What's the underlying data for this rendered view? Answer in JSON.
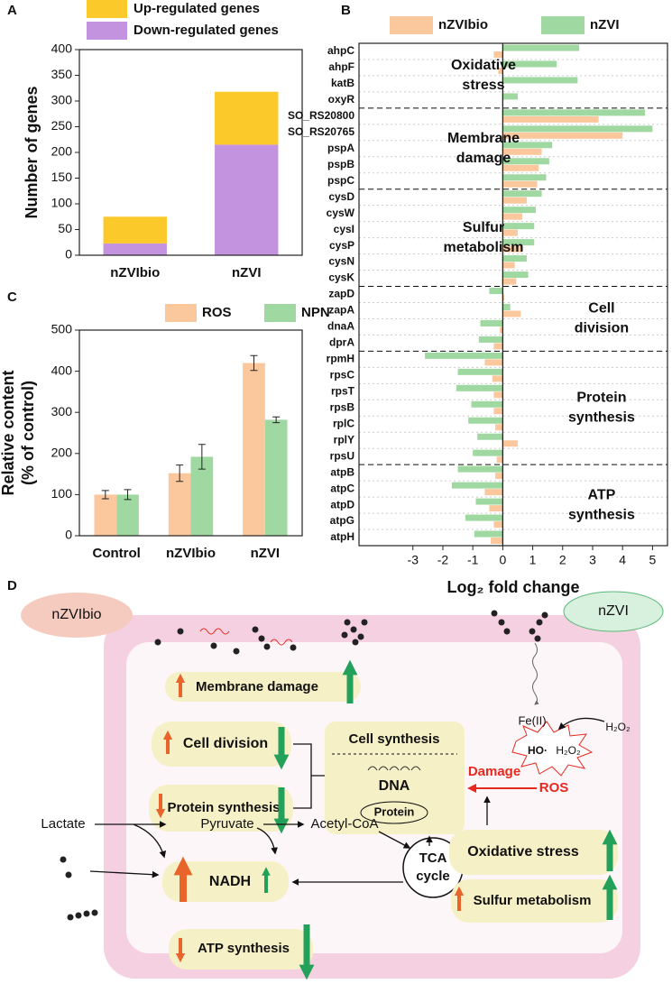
{
  "panel_labels": [
    "A",
    "B",
    "C",
    "D"
  ],
  "chart_data": [
    {
      "type": "stacked_bar",
      "categories": [
        "nZVIbio",
        "nZVI"
      ],
      "series": [
        {
          "name": "Up-regulated genes",
          "color": "#fcc92b",
          "values": [
            52,
            103
          ]
        },
        {
          "name": "Down-regulated genes",
          "color": "#c393e0",
          "values": [
            23,
            215
          ]
        }
      ],
      "ylabel": "Number of genes",
      "ylim": [
        0,
        400
      ],
      "yticks": [
        0,
        50,
        100,
        150,
        200,
        250,
        300,
        350,
        400
      ]
    },
    {
      "type": "hbar",
      "categories": [
        "ahpC",
        "ahpF",
        "katB",
        "oxyR",
        "SO_RS20800",
        "SO_RS20765",
        "pspA",
        "pspB",
        "pspC",
        "cysD",
        "cysW",
        "cysI",
        "cysP",
        "cysN",
        "cysK",
        "zapD",
        "zapA",
        "dnaA",
        "dprA",
        "rpmH",
        "rpsC",
        "rpsT",
        "rpsB",
        "rplC",
        "rplY",
        "rpsU",
        "atpB",
        "atpC",
        "atpD",
        "atpG",
        "atpH"
      ],
      "series": [
        {
          "name": "nZVIbio",
          "color": "#fbc79c",
          "values": [
            -0.3,
            -0.15,
            0,
            0,
            3.2,
            4.0,
            1.3,
            1.2,
            1.15,
            0.8,
            0.65,
            0.5,
            0.65,
            0.4,
            0.45,
            0.05,
            0.6,
            -0.1,
            -0.3,
            -0.6,
            -0.35,
            -0.3,
            -0.3,
            -0.25,
            0.5,
            -0.2,
            -0.25,
            -0.6,
            -0.45,
            -0.3,
            -0.4
          ]
        },
        {
          "name": "nZVI",
          "color": "#9fd8a0",
          "values": [
            2.55,
            1.8,
            2.5,
            0.5,
            4.75,
            5.0,
            1.65,
            1.55,
            1.45,
            1.3,
            1.1,
            1.05,
            1.05,
            0.8,
            0.85,
            -0.45,
            0.25,
            -0.75,
            -0.8,
            -2.6,
            -1.5,
            -1.55,
            -1.05,
            -1.15,
            -0.85,
            -1.0,
            -1.5,
            -1.7,
            -0.9,
            -1.25,
            -0.95
          ]
        }
      ],
      "groups": [
        [
          "Oxidative",
          "stress"
        ],
        [
          "Membrane",
          "damage"
        ],
        [
          "Sulfur",
          "metabolism"
        ],
        [
          "Cell",
          "division"
        ],
        [
          "Protein",
          "synthesis"
        ],
        [
          "ATP",
          "synthesis"
        ]
      ],
      "xlabel": "Log₂ fold change",
      "xlim": [
        -4.8,
        5.5
      ],
      "xticks": [
        -3,
        -2,
        -1,
        0,
        1,
        2,
        3,
        4,
        5
      ]
    },
    {
      "type": "grouped_bar",
      "categories": [
        "Control",
        "nZVIbio",
        "nZVI"
      ],
      "series": [
        {
          "name": "ROS",
          "color": "#fbc79c",
          "values": [
            100,
            152,
            420
          ],
          "errors": [
            10,
            20,
            18
          ]
        },
        {
          "name": "NPN",
          "color": "#9fd8a0",
          "values": [
            100,
            192,
            282
          ],
          "errors": [
            12,
            30,
            7
          ]
        }
      ],
      "ylabel": [
        "Relative content",
        "(% of control)"
      ],
      "ylim": [
        0,
        500
      ],
      "yticks": [
        0,
        100,
        200,
        300,
        400,
        500
      ]
    }
  ],
  "diagram": {
    "nzvibio": "nZVIbio",
    "nzvi": "nZVI",
    "membrane": "Membrane damage",
    "division": "Cell division",
    "protein_synthesis": "Protein synthesis",
    "cell_synthesis": "Cell synthesis",
    "dna": "DNA",
    "protein": "Protein",
    "lactate": "Lactate",
    "pyruvate": "Pyruvate",
    "acetyl": "Acetyl-CoA",
    "nadh": "NADH",
    "tca": [
      "TCA",
      "cycle"
    ],
    "atp": "ATP synthesis",
    "damage": "Damage",
    "ros": "ROS",
    "oxidative": "Oxidative stress",
    "sulfur": "Sulfur metabolism",
    "fe": "Fe(II)",
    "h2o2_a": "H₂O₂",
    "ho": "HO·",
    "h2o2_b": "H₂O₂"
  }
}
